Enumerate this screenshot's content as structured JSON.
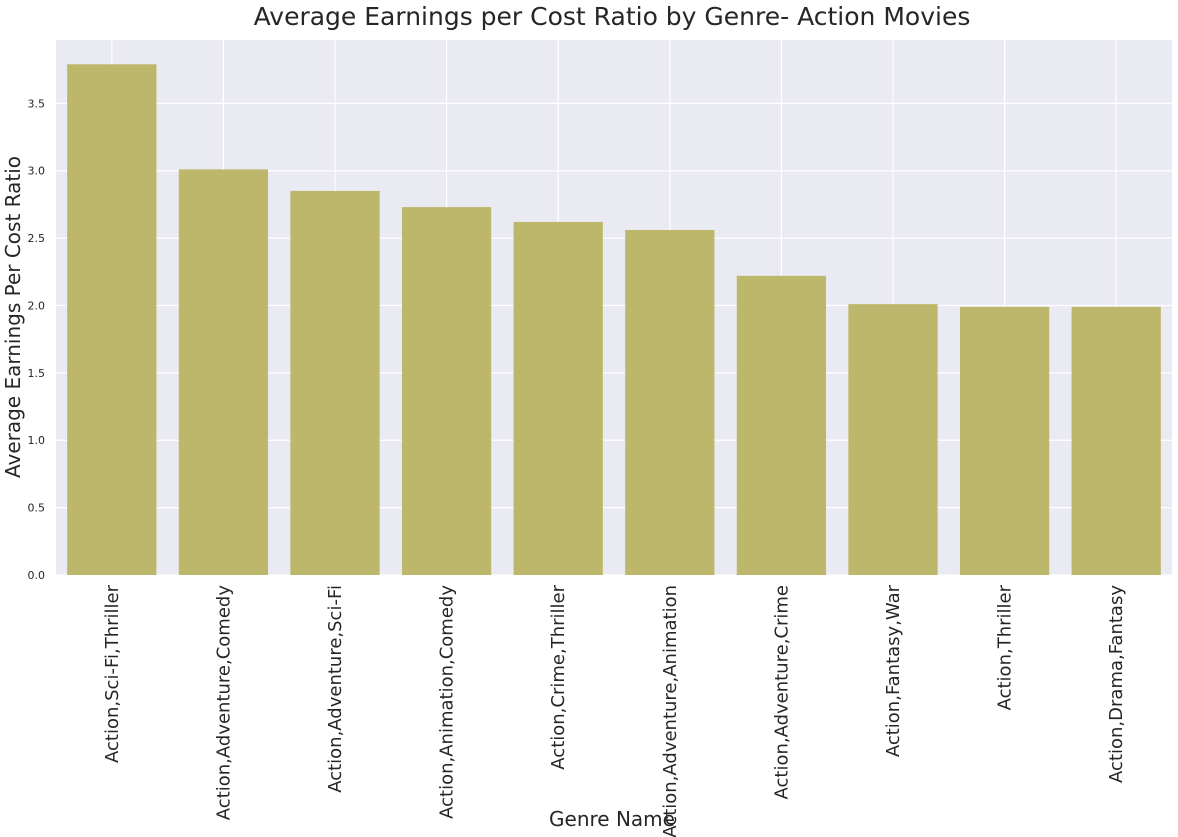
{
  "chart_data": {
    "type": "bar",
    "title": "Average Earnings per Cost Ratio by Genre- Action Movies",
    "xlabel": "Genre Name",
    "ylabel": "Average Earnings Per Cost Ratio",
    "categories": [
      "Action,Sci-Fi,Thriller",
      "Action,Adventure,Comedy",
      "Action,Adventure,Sci-Fi",
      "Action,Animation,Comedy",
      "Action,Crime,Thriller",
      "Action,Adventure,Animation",
      "Action,Adventure,Crime",
      "Action,Fantasy,War",
      "Action,Thriller",
      "Action,Drama,Fantasy"
    ],
    "values": [
      3.79,
      3.01,
      2.85,
      2.73,
      2.62,
      2.56,
      2.22,
      2.01,
      1.99,
      1.99
    ],
    "ylim": [
      0,
      3.97
    ],
    "yticks": [
      "0.0",
      "0.5",
      "1.0",
      "1.5",
      "2.0",
      "2.5",
      "3.0",
      "3.5"
    ],
    "grid": true,
    "colors": {
      "bar": "#bdb76b",
      "plot_background": "#eaeaf2",
      "grid": "#ffffff",
      "text": "#262626"
    }
  }
}
